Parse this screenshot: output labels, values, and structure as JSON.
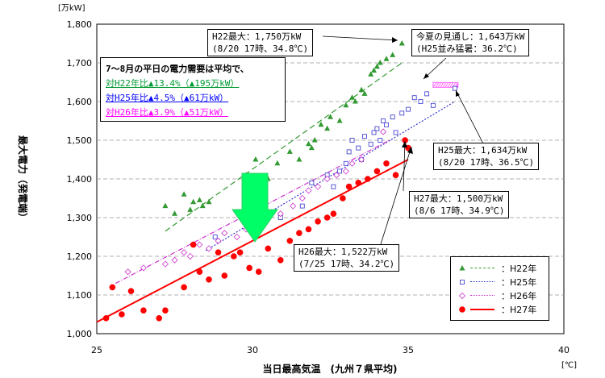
{
  "chart_data": {
    "type": "scatter",
    "title": "",
    "xlabel": "当日最高気温　(九州７県平均)",
    "x_unit": "[℃]",
    "ylabel": "最大電力（発電端）",
    "y_unit": "[万kW]",
    "xlim": [
      25,
      40
    ],
    "ylim": [
      1000,
      1800
    ],
    "x_ticks": [
      "25",
      "30",
      "35",
      "40"
    ],
    "y_ticks": [
      "1,000",
      "1,100",
      "1,200",
      "1,300",
      "1,400",
      "1,500",
      "1,600",
      "1,700",
      "1,800"
    ],
    "grid": "horizontal-dashed",
    "legend_position": "bottom-right",
    "series": [
      {
        "name": "：H22年",
        "marker": "triangle",
        "color": "#339933",
        "line_style": "dashed",
        "points": [
          [
            27.2,
            1330
          ],
          [
            27.5,
            1310
          ],
          [
            27.8,
            1360
          ],
          [
            28.0,
            1320
          ],
          [
            28.1,
            1340
          ],
          [
            28.3,
            1345
          ],
          [
            28.4,
            1330
          ],
          [
            28.6,
            1340
          ],
          [
            29.8,
            1410
          ],
          [
            30.1,
            1450
          ],
          [
            30.5,
            1400
          ],
          [
            30.8,
            1440
          ],
          [
            31.2,
            1470
          ],
          [
            31.5,
            1450
          ],
          [
            31.8,
            1490
          ],
          [
            31.9,
            1480
          ],
          [
            32.0,
            1500
          ],
          [
            32.2,
            1540
          ],
          [
            32.4,
            1530
          ],
          [
            32.5,
            1560
          ],
          [
            32.8,
            1550
          ],
          [
            33.0,
            1590
          ],
          [
            33.2,
            1610
          ],
          [
            33.3,
            1600
          ],
          [
            33.5,
            1630
          ],
          [
            33.6,
            1620
          ],
          [
            33.8,
            1670
          ],
          [
            33.9,
            1680
          ],
          [
            34.0,
            1690
          ],
          [
            34.1,
            1700
          ],
          [
            34.3,
            1710
          ],
          [
            34.5,
            1720
          ],
          [
            34.8,
            1750
          ]
        ],
        "trend": [
          [
            27.2,
            1265
          ],
          [
            34.8,
            1700
          ]
        ]
      },
      {
        "name": "：H25年",
        "marker": "square",
        "color": "#3333cc",
        "line_style": "dotted",
        "points": [
          [
            28.8,
            1250
          ],
          [
            30.9,
            1300
          ],
          [
            31.6,
            1330
          ],
          [
            31.9,
            1390
          ],
          [
            32.4,
            1410
          ],
          [
            32.6,
            1380
          ],
          [
            32.8,
            1420
          ],
          [
            33.0,
            1440
          ],
          [
            33.1,
            1470
          ],
          [
            33.2,
            1500
          ],
          [
            33.4,
            1480
          ],
          [
            33.5,
            1450
          ],
          [
            33.6,
            1510
          ],
          [
            33.8,
            1490
          ],
          [
            33.9,
            1520
          ],
          [
            34.0,
            1530
          ],
          [
            34.1,
            1500
          ],
          [
            34.2,
            1550
          ],
          [
            34.3,
            1540
          ],
          [
            34.5,
            1560
          ],
          [
            34.6,
            1520
          ],
          [
            34.8,
            1570
          ],
          [
            35.0,
            1580
          ],
          [
            35.2,
            1610
          ],
          [
            35.4,
            1600
          ],
          [
            35.6,
            1620
          ],
          [
            35.8,
            1590
          ],
          [
            36.5,
            1634
          ]
        ],
        "trend": [
          [
            28.5,
            1215
          ],
          [
            36.5,
            1600
          ]
        ]
      },
      {
        "name": "：H26年",
        "marker": "diamond",
        "color": "#cc33cc",
        "line_style": "dash-dot",
        "points": [
          [
            26.0,
            1160
          ],
          [
            26.5,
            1170
          ],
          [
            27.2,
            1180
          ],
          [
            27.5,
            1190
          ],
          [
            27.8,
            1210
          ],
          [
            28.0,
            1200
          ],
          [
            28.3,
            1230
          ],
          [
            28.6,
            1220
          ],
          [
            28.9,
            1240
          ],
          [
            29.1,
            1260
          ],
          [
            29.5,
            1250
          ],
          [
            29.8,
            1270
          ],
          [
            30.2,
            1280
          ],
          [
            30.5,
            1300
          ],
          [
            30.9,
            1310
          ],
          [
            31.3,
            1330
          ],
          [
            31.6,
            1350
          ],
          [
            31.8,
            1370
          ],
          [
            32.1,
            1380
          ],
          [
            32.4,
            1400
          ],
          [
            32.7,
            1410
          ],
          [
            33.0,
            1420
          ],
          [
            33.2,
            1440
          ],
          [
            33.5,
            1450
          ],
          [
            34.2,
            1522
          ]
        ],
        "trend": [
          [
            25.6,
            1130
          ],
          [
            34.4,
            1500
          ]
        ]
      },
      {
        "name": "：H27年",
        "marker": "circle",
        "color": "#ff0000",
        "line_style": "solid",
        "points": [
          [
            25.3,
            1040
          ],
          [
            25.5,
            1120
          ],
          [
            25.8,
            1050
          ],
          [
            26.1,
            1110
          ],
          [
            26.5,
            1060
          ],
          [
            27.0,
            1040
          ],
          [
            27.2,
            1060
          ],
          [
            27.8,
            1120
          ],
          [
            28.1,
            1230
          ],
          [
            28.3,
            1160
          ],
          [
            28.6,
            1140
          ],
          [
            28.9,
            1210
          ],
          [
            29.1,
            1150
          ],
          [
            29.4,
            1200
          ],
          [
            29.6,
            1210
          ],
          [
            29.9,
            1170
          ],
          [
            30.2,
            1160
          ],
          [
            30.5,
            1220
          ],
          [
            30.9,
            1190
          ],
          [
            31.2,
            1240
          ],
          [
            31.5,
            1260
          ],
          [
            31.8,
            1270
          ],
          [
            32.1,
            1290
          ],
          [
            32.4,
            1300
          ],
          [
            32.6,
            1310
          ],
          [
            32.9,
            1350
          ],
          [
            33.1,
            1380
          ],
          [
            33.4,
            1390
          ],
          [
            33.7,
            1400
          ],
          [
            34.0,
            1420
          ],
          [
            34.3,
            1440
          ],
          [
            34.6,
            1410
          ],
          [
            34.9,
            1500
          ],
          [
            35.0,
            1480
          ]
        ],
        "trend": [
          [
            25.0,
            1030
          ],
          [
            35.0,
            1450
          ]
        ]
      }
    ],
    "forecast": {
      "x": [
        35.8,
        36.6
      ],
      "y": [
        1643,
        1643
      ],
      "color": "#ff66ff",
      "marker": "hatched-band"
    },
    "annotations": [
      {
        "lines": [
          "H22最大：1,750万kW",
          "(8/20 17時、34.8℃)"
        ]
      },
      {
        "lines": [
          "今夏の見通し：1,643万kW",
          "(H25並み猛暑：36.2℃)"
        ]
      },
      {
        "lines": [
          "H25最大：1,634万kW",
          "(8/20 17時、36.5℃)"
        ]
      },
      {
        "lines": [
          "H27最大：1,500万kW",
          "(8/6 17時、34.9℃)"
        ]
      },
      {
        "lines": [
          "H26最大：1,522万kW",
          "(7/25 17時、34.2℃)"
        ]
      }
    ],
    "info_box": {
      "line1": "7～8月の平日の電力需要は平均で、",
      "line2": "対H22年比▲13.4%（▲195万kW）",
      "line3": "対H25年比▲4.5%（▲61万kW）",
      "line4": "対H26年比▲3.9%（▲51万kW）",
      "line2_color": "#009933",
      "line3_color": "#0000ff",
      "line4_color": "#ff00ff"
    },
    "arrow_color": "#00ff66"
  }
}
